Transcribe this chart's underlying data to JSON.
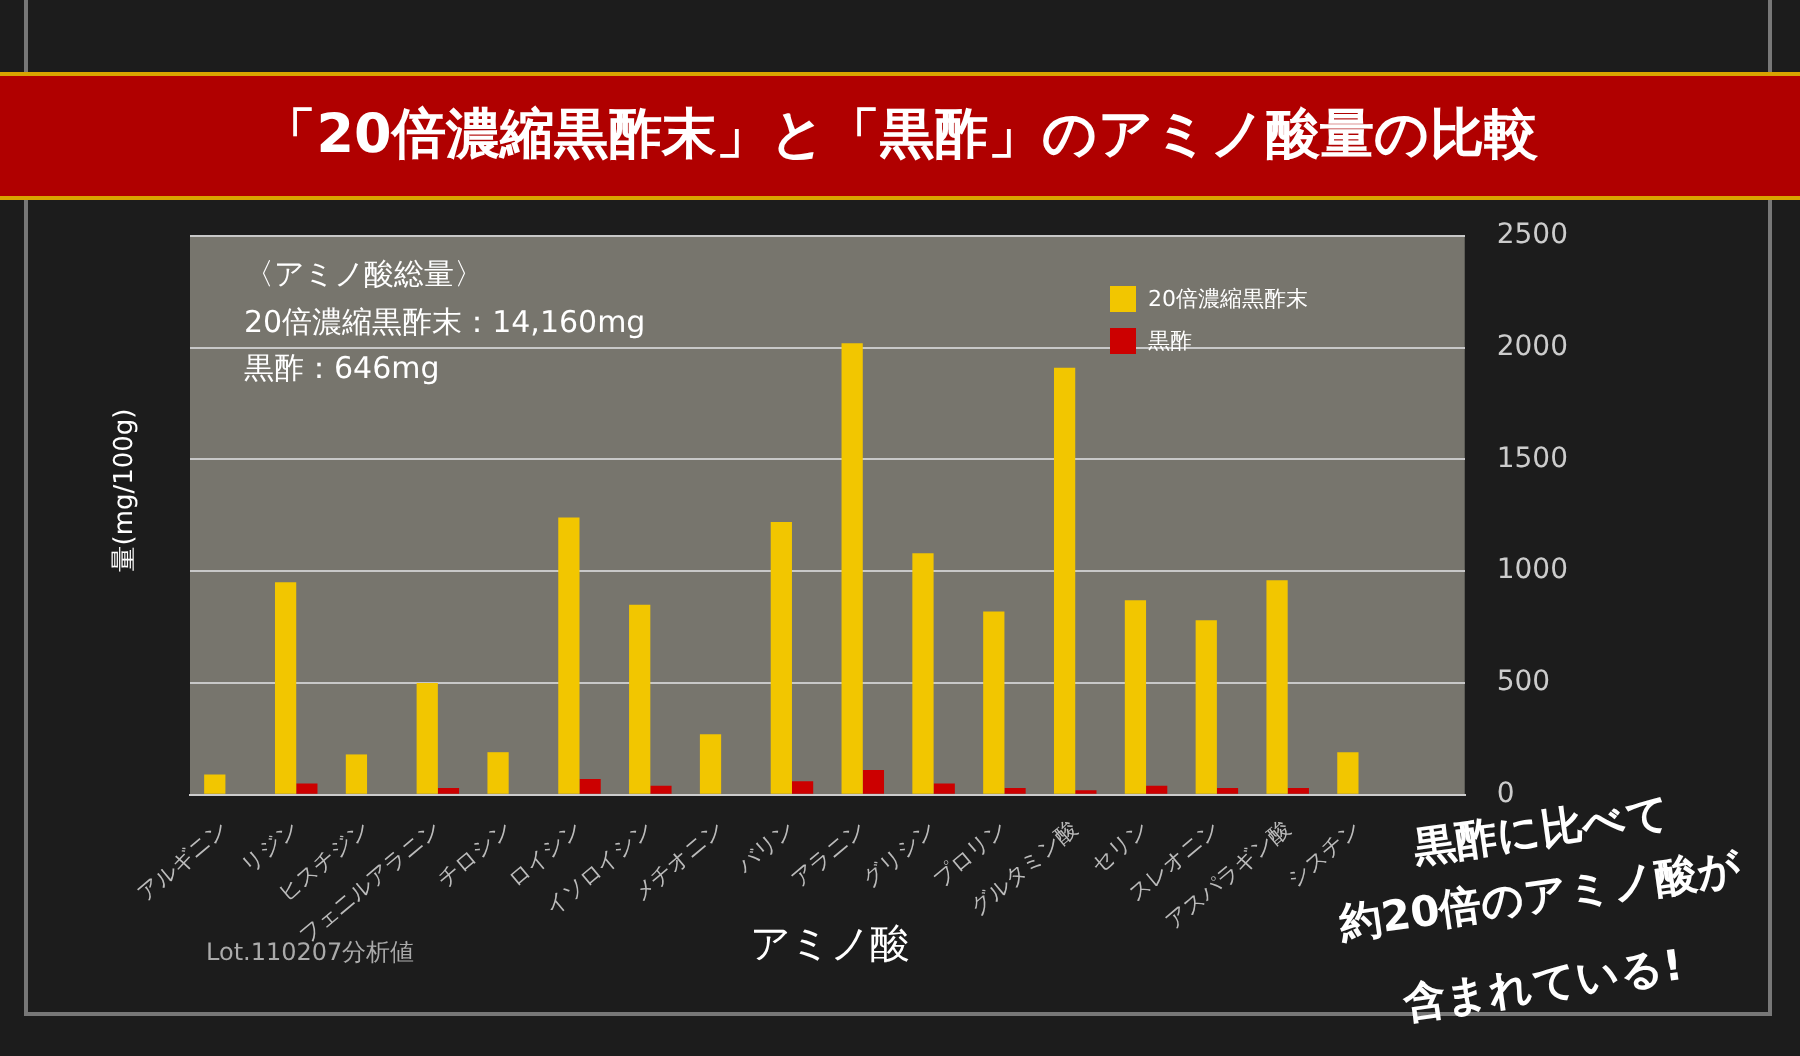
{
  "chart_data": {
    "type": "bar",
    "title": "「20倍濃縮黒酢末」と「黒酢」のアミノ酸量の比較",
    "xlabel": "アミノ酸",
    "ylabel": "量(mg/100g)",
    "categories": [
      "アルギニン",
      "リジン",
      "ヒスチジン",
      "フェニルアラニン",
      "チロシン",
      "ロイシン",
      "イソロイシン",
      "メチオニン",
      "バリン",
      "アラニン",
      "グリシン",
      "プロリン",
      "グルタミン酸",
      "セリン",
      "スレオニン",
      "アスパラギン酸",
      "シスチン",
      null
    ],
    "series": [
      {
        "name": "20倍濃縮黒酢末",
        "color": "#f2c600",
        "values": [
          90,
          950,
          180,
          500,
          190,
          1240,
          850,
          270,
          1220,
          2020,
          1080,
          820,
          1910,
          870,
          780,
          960,
          190,
          null
        ]
      },
      {
        "name": "黒酢",
        "color": "#cc0000",
        "values": [
          0,
          50,
          0,
          30,
          0,
          70,
          40,
          0,
          60,
          110,
          50,
          30,
          20,
          40,
          30,
          30,
          0,
          null
        ]
      }
    ],
    "ylim": [
      0,
      2500
    ],
    "yticks": [
      0,
      500,
      1000,
      1500,
      2000,
      2500
    ],
    "grid": "y",
    "legend": "top right",
    "annotations": [
      "〈アミノ酸総量〉",
      "20倍濃縮黒酢末：14,160mg",
      "黒酢：646mg",
      "Lot.110207分析値",
      "黒酢に比べて",
      "約20倍のアミノ酸が",
      "含まれている!"
    ]
  }
}
